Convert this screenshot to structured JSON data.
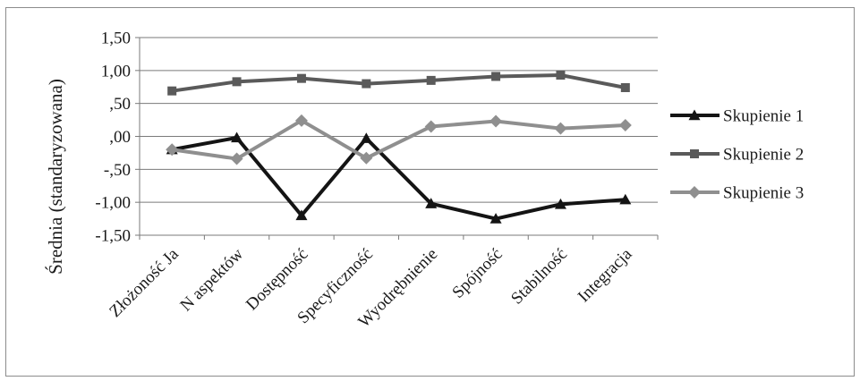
{
  "chart_data": {
    "type": "line",
    "title": "",
    "xlabel": "",
    "ylabel": "Średnia (standaryzowana)",
    "ylim": [
      -1.5,
      1.5
    ],
    "yticks": [
      1.5,
      1.0,
      0.5,
      0.0,
      -0.5,
      -1.0,
      -1.5
    ],
    "ytick_labels": [
      "1,50",
      "1,00",
      ",50",
      ",00",
      "-,50",
      "-1,00",
      "-1,50"
    ],
    "grid": "horizontal",
    "legend_position": "right",
    "categories": [
      "Złożoność Ja",
      "N aspektów",
      "Dostępność",
      "Specyficzność",
      "Wyodrębnienie",
      "Spójność",
      "Stabilność",
      "Integracja"
    ],
    "series": [
      {
        "name": "Skupienie 1",
        "color": "#141414",
        "marker": "triangle",
        "values": [
          -0.2,
          -0.02,
          -1.2,
          -0.03,
          -1.02,
          -1.25,
          -1.03,
          -0.96
        ]
      },
      {
        "name": "Skupienie 2",
        "color": "#5a5a5a",
        "marker": "square",
        "values": [
          0.69,
          0.83,
          0.88,
          0.8,
          0.85,
          0.91,
          0.93,
          0.74
        ]
      },
      {
        "name": "Skupienie 3",
        "color": "#8f8f8f",
        "marker": "diamond",
        "values": [
          -0.2,
          -0.34,
          0.24,
          -0.33,
          0.15,
          0.23,
          0.12,
          0.17
        ]
      }
    ]
  }
}
